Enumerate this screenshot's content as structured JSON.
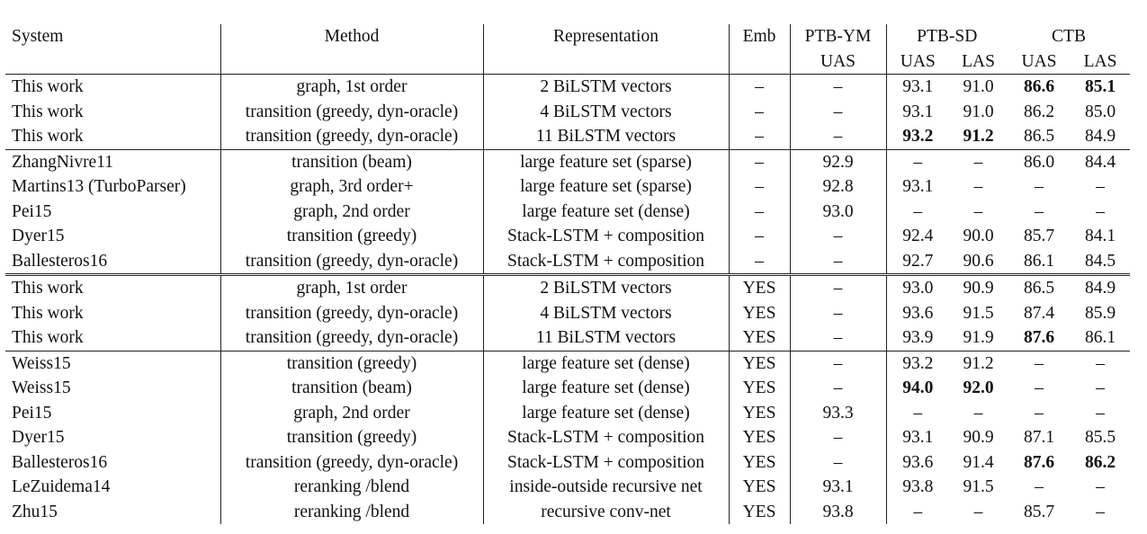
{
  "header": {
    "system": "System",
    "method": "Method",
    "representation": "Representation",
    "emb": "Emb",
    "ptb_ym": "PTB-YM",
    "ptb_sd": "PTB-SD",
    "ctb": "CTB",
    "uas": "UAS",
    "las": "LAS"
  },
  "groups": [
    {
      "border": "single",
      "rows": [
        {
          "system": "This work",
          "method": "graph, 1st order",
          "rep": "2 BiLSTM vectors",
          "emb": "–",
          "ym": "–",
          "sd_uas": "93.1",
          "sd_las": "91.0",
          "ctb_uas": "86.6",
          "ctb_las": "85.1",
          "bold": [
            "ctb_uas",
            "ctb_las"
          ]
        },
        {
          "system": "This work",
          "method": "transition (greedy, dyn-oracle)",
          "rep": "4 BiLSTM vectors",
          "emb": "–",
          "ym": "–",
          "sd_uas": "93.1",
          "sd_las": "91.0",
          "ctb_uas": "86.2",
          "ctb_las": "85.0",
          "bold": []
        },
        {
          "system": "This work",
          "method": "transition (greedy, dyn-oracle)",
          "rep": "11 BiLSTM vectors",
          "emb": "–",
          "ym": "–",
          "sd_uas": "93.2",
          "sd_las": "91.2",
          "ctb_uas": "86.5",
          "ctb_las": "84.9",
          "bold": [
            "sd_uas",
            "sd_las"
          ]
        }
      ]
    },
    {
      "border": "single",
      "rows": [
        {
          "system": "ZhangNivre11",
          "method": "transition (beam)",
          "rep": "large feature set (sparse)",
          "emb": "–",
          "ym": "92.9",
          "sd_uas": "–",
          "sd_las": "–",
          "ctb_uas": "86.0",
          "ctb_las": "84.4",
          "bold": []
        },
        {
          "system": "Martins13 (TurboParser)",
          "method": "graph, 3rd order+",
          "rep": "large feature set (sparse)",
          "emb": "–",
          "ym": "92.8",
          "sd_uas": "93.1",
          "sd_las": "–",
          "ctb_uas": "–",
          "ctb_las": "–",
          "bold": []
        },
        {
          "system": "Pei15",
          "method": "graph, 2nd order",
          "rep": "large feature set (dense)",
          "emb": "–",
          "ym": "93.0",
          "sd_uas": "–",
          "sd_las": "–",
          "ctb_uas": "–",
          "ctb_las": "–",
          "bold": []
        },
        {
          "system": "Dyer15",
          "method": "transition (greedy)",
          "rep": "Stack-LSTM + composition",
          "emb": "–",
          "ym": "–",
          "sd_uas": "92.4",
          "sd_las": "90.0",
          "ctb_uas": "85.7",
          "ctb_las": "84.1",
          "bold": []
        },
        {
          "system": "Ballesteros16",
          "method": "transition (greedy, dyn-oracle)",
          "rep": "Stack-LSTM + composition",
          "emb": "–",
          "ym": "–",
          "sd_uas": "92.7",
          "sd_las": "90.6",
          "ctb_uas": "86.1",
          "ctb_las": "84.5",
          "bold": []
        }
      ]
    },
    {
      "border": "double",
      "rows": [
        {
          "system": "This work",
          "method": "graph, 1st order",
          "rep": "2 BiLSTM vectors",
          "emb": "YES",
          "ym": "–",
          "sd_uas": "93.0",
          "sd_las": "90.9",
          "ctb_uas": "86.5",
          "ctb_las": "84.9",
          "bold": []
        },
        {
          "system": "This work",
          "method": "transition (greedy, dyn-oracle)",
          "rep": "4 BiLSTM vectors",
          "emb": "YES",
          "ym": "–",
          "sd_uas": "93.6",
          "sd_las": "91.5",
          "ctb_uas": "87.4",
          "ctb_las": "85.9",
          "bold": []
        },
        {
          "system": "This work",
          "method": "transition (greedy, dyn-oracle)",
          "rep": "11 BiLSTM vectors",
          "emb": "YES",
          "ym": "–",
          "sd_uas": "93.9",
          "sd_las": "91.9",
          "ctb_uas": "87.6",
          "ctb_las": "86.1",
          "bold": [
            "ctb_uas"
          ]
        }
      ]
    },
    {
      "border": "single",
      "rows": [
        {
          "system": "Weiss15",
          "method": "transition (greedy)",
          "rep": "large feature set (dense)",
          "emb": "YES",
          "ym": "–",
          "sd_uas": "93.2",
          "sd_las": "91.2",
          "ctb_uas": "–",
          "ctb_las": "–",
          "bold": []
        },
        {
          "system": "Weiss15",
          "method": "transition (beam)",
          "rep": "large feature set (dense)",
          "emb": "YES",
          "ym": "–",
          "sd_uas": "94.0",
          "sd_las": "92.0",
          "ctb_uas": "–",
          "ctb_las": "–",
          "bold": [
            "sd_uas",
            "sd_las"
          ]
        },
        {
          "system": "Pei15",
          "method": "graph, 2nd order",
          "rep": "large feature set (dense)",
          "emb": "YES",
          "ym": "93.3",
          "sd_uas": "–",
          "sd_las": "–",
          "ctb_uas": "–",
          "ctb_las": "–",
          "bold": []
        },
        {
          "system": "Dyer15",
          "method": "transition (greedy)",
          "rep": "Stack-LSTM + composition",
          "emb": "YES",
          "ym": "–",
          "sd_uas": "93.1",
          "sd_las": "90.9",
          "ctb_uas": "87.1",
          "ctb_las": "85.5",
          "bold": []
        },
        {
          "system": "Ballesteros16",
          "method": "transition (greedy, dyn-oracle)",
          "rep": "Stack-LSTM + composition",
          "emb": "YES",
          "ym": "–",
          "sd_uas": "93.6",
          "sd_las": "91.4",
          "ctb_uas": "87.6",
          "ctb_las": "86.2",
          "bold": [
            "ctb_uas",
            "ctb_las"
          ]
        },
        {
          "system": "LeZuidema14",
          "method": "reranking /blend",
          "rep": "inside-outside recursive net",
          "emb": "YES",
          "ym": "93.1",
          "sd_uas": "93.8",
          "sd_las": "91.5",
          "ctb_uas": "–",
          "ctb_las": "–",
          "bold": []
        },
        {
          "system": "Zhu15",
          "method": "reranking /blend",
          "rep": "recursive conv-net",
          "emb": "YES",
          "ym": "93.8",
          "sd_uas": "–",
          "sd_las": "–",
          "ctb_uas": "85.7",
          "ctb_las": "–",
          "bold": []
        }
      ]
    }
  ]
}
